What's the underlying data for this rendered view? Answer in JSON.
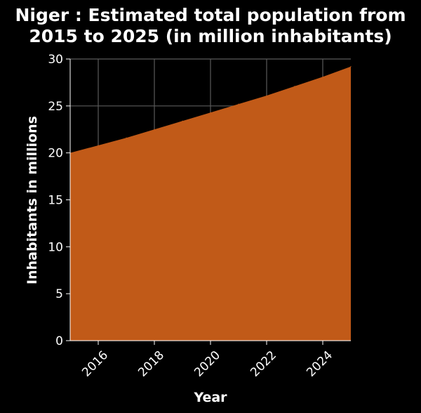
{
  "chart_data": {
    "type": "area",
    "title_lines": [
      "Niger : Estimated total population from",
      "2015 to 2025 (in million inhabitants)"
    ],
    "xlabel": "Year",
    "ylabel": "Inhabitants in millions",
    "x": [
      2015,
      2016,
      2017,
      2018,
      2019,
      2020,
      2021,
      2022,
      2023,
      2024,
      2025
    ],
    "series": [
      {
        "values": [
          20.0,
          20.8,
          21.6,
          22.5,
          23.4,
          24.3,
          25.2,
          26.1,
          27.1,
          28.1,
          29.2
        ]
      }
    ],
    "xlim": [
      2015,
      2025
    ],
    "ylim": [
      0,
      30
    ],
    "x_ticks": [
      2016,
      2018,
      2020,
      2022,
      2024
    ],
    "y_ticks": [
      0,
      5,
      10,
      15,
      20,
      25,
      30
    ],
    "grid": true,
    "colors": {
      "area": "#c15a18",
      "background": "#000000",
      "grid": "#5a5a5a",
      "text": "#ffffff"
    }
  }
}
